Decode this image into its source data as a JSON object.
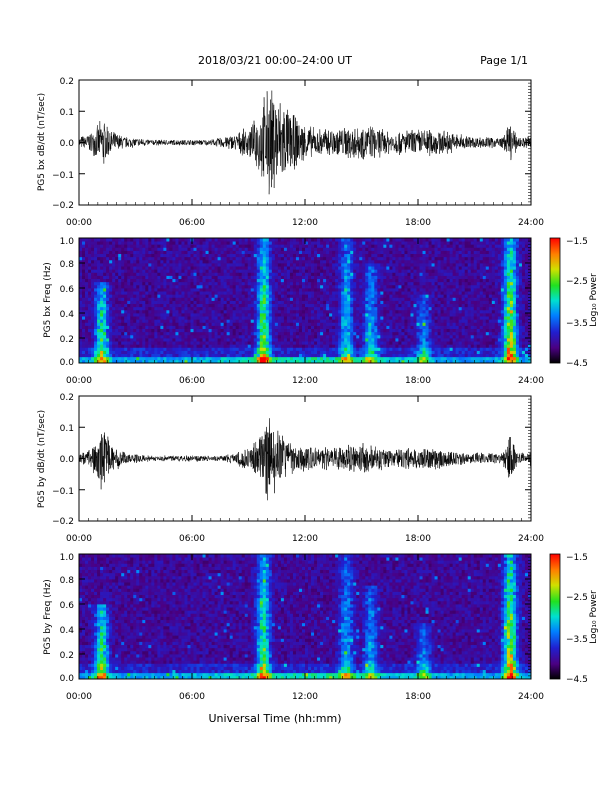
{
  "header": {
    "title": "2018/03/21  00:00–24:00 UT",
    "page": "Page 1/1"
  },
  "xlabel": "Universal Time (hh:mm)",
  "chart_data": [
    {
      "type": "line",
      "ylabel": "PG5 bx dB/dt (nT/sec)",
      "xlim": [
        0,
        24
      ],
      "ylim": [
        -0.2,
        0.2
      ],
      "xticks": [
        "00:00",
        "06:00",
        "12:00",
        "18:00",
        "24:00"
      ],
      "yticks": [
        "0.2",
        "0.1",
        "0.0",
        "−0.1",
        "−0.2"
      ],
      "envelope": {
        "x_hours": [
          0,
          0.5,
          0.9,
          1.3,
          1.7,
          2.5,
          4,
          6,
          7,
          8.3,
          9.2,
          9.6,
          10,
          10.5,
          11,
          11.6,
          12.5,
          13.5,
          14.5,
          15.5,
          16.5,
          17.5,
          18.5,
          19.5,
          21,
          22.5,
          22.9,
          23.3,
          23.7,
          24
        ],
        "amplitude": [
          0.02,
          0.03,
          0.05,
          0.09,
          0.04,
          0.02,
          0.01,
          0.01,
          0.01,
          0.03,
          0.06,
          0.12,
          0.19,
          0.18,
          0.13,
          0.08,
          0.05,
          0.05,
          0.06,
          0.06,
          0.04,
          0.045,
          0.05,
          0.04,
          0.02,
          0.02,
          0.07,
          0.02,
          0.02,
          0.04
        ]
      }
    },
    {
      "type": "heatmap",
      "ylabel": "PG5 bx Freq (Hz)",
      "xlim": [
        0,
        24
      ],
      "ylim": [
        0,
        1.0
      ],
      "xticks": [
        "00:00",
        "06:00",
        "12:00",
        "18:00",
        "24:00"
      ],
      "yticks": [
        "1.0",
        "0.8",
        "0.6",
        "0.4",
        "0.2",
        "0.0"
      ],
      "colorbar": {
        "label": "Log₁₀ Power",
        "range": [
          -4.5,
          -1.5
        ],
        "ticks": [
          "−1.5",
          "−2.5",
          "−3.5",
          "−4.5"
        ]
      },
      "bursts": [
        {
          "t": 1.2,
          "fmax": 0.65,
          "strength": 0.55
        },
        {
          "t": 9.8,
          "fmax": 1.0,
          "strength": 0.6
        },
        {
          "t": 14.2,
          "fmax": 1.0,
          "strength": 0.4
        },
        {
          "t": 15.5,
          "fmax": 0.8,
          "strength": 0.4
        },
        {
          "t": 18.3,
          "fmax": 0.55,
          "strength": 0.35
        },
        {
          "t": 22.9,
          "fmax": 1.0,
          "strength": 0.7
        }
      ]
    },
    {
      "type": "line",
      "ylabel": "PG5 by dB/dt (nT/sec)",
      "xlim": [
        0,
        24
      ],
      "ylim": [
        -0.2,
        0.2
      ],
      "xticks": [
        "00:00",
        "06:00",
        "12:00",
        "18:00",
        "24:00"
      ],
      "yticks": [
        "0.2",
        "0.1",
        "0.0",
        "−0.1",
        "−0.2"
      ],
      "envelope": {
        "x_hours": [
          0,
          0.5,
          0.9,
          1.3,
          1.7,
          2.5,
          4,
          6,
          7,
          8.3,
          9.2,
          9.6,
          10,
          10.5,
          11,
          11.6,
          12.5,
          13.5,
          14.5,
          15.5,
          16.5,
          17.5,
          18.5,
          19.5,
          21,
          22.5,
          22.9,
          23.3,
          23.7,
          24
        ],
        "amplitude": [
          0.02,
          0.03,
          0.06,
          0.13,
          0.05,
          0.02,
          0.01,
          0.01,
          0.01,
          0.02,
          0.05,
          0.09,
          0.15,
          0.11,
          0.07,
          0.05,
          0.04,
          0.04,
          0.05,
          0.05,
          0.03,
          0.035,
          0.04,
          0.03,
          0.02,
          0.02,
          0.09,
          0.02,
          0.02,
          0.03
        ]
      }
    },
    {
      "type": "heatmap",
      "ylabel": "PG5 by Freq (Hz)",
      "xlim": [
        0,
        24
      ],
      "ylim": [
        0,
        1.0
      ],
      "xticks": [
        "00:00",
        "06:00",
        "12:00",
        "18:00",
        "24:00"
      ],
      "yticks": [
        "1.0",
        "0.8",
        "0.6",
        "0.4",
        "0.2",
        "0.0"
      ],
      "colorbar": {
        "label": "Log₁₀ Power",
        "range": [
          -4.5,
          -1.5
        ],
        "ticks": [
          "−1.5",
          "−2.5",
          "−3.5",
          "−4.5"
        ]
      },
      "bursts": [
        {
          "t": 1.2,
          "fmax": 0.6,
          "strength": 0.6
        },
        {
          "t": 9.8,
          "fmax": 1.0,
          "strength": 0.55
        },
        {
          "t": 14.2,
          "fmax": 1.0,
          "strength": 0.35
        },
        {
          "t": 15.5,
          "fmax": 0.75,
          "strength": 0.35
        },
        {
          "t": 18.3,
          "fmax": 0.45,
          "strength": 0.35
        },
        {
          "t": 22.9,
          "fmax": 1.0,
          "strength": 0.7
        }
      ]
    }
  ]
}
